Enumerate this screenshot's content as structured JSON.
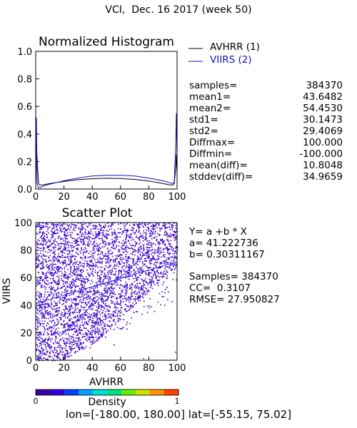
{
  "title": "VCI,  Dec. 16 2017 (week 50)",
  "footer": "lon=[-180.00, 180.00] lat=[-55.15, 75.02]",
  "colors": {
    "avhrr": "#000000",
    "viirs": "#1010c8",
    "scatter": "#3a00c8",
    "fit_line": "#2a2ad8"
  },
  "stats": {
    "rows": [
      {
        "label": "samples=",
        "value": "384370"
      },
      {
        "label": "mean1=",
        "value": "43.6482"
      },
      {
        "label": "mean2=",
        "value": "54.4530"
      },
      {
        "label": "std1=",
        "value": "30.1473"
      },
      {
        "label": "std2=",
        "value": "29.4069"
      },
      {
        "label": "Diffmax=",
        "value": "100.000"
      },
      {
        "label": "Diffmin=",
        "value": "-100.000"
      },
      {
        "label": "mean(diff)=",
        "value": "10.8048"
      },
      {
        "label": "stddev(diff)=",
        "value": "34.9659"
      }
    ]
  },
  "fit": {
    "equation": "Y= a +b * X",
    "a": "a= 41.222736",
    "b": "b= 0.30311167",
    "samples": "Samples= 384370",
    "cc": "CC=  0.3107",
    "rmse": "RMSE= 27.950827"
  },
  "chart_data": [
    {
      "type": "line",
      "title": "Normalized Histogram",
      "xlim": [
        0,
        100
      ],
      "ylim": [
        0.0,
        1.0
      ],
      "x_ticks": [
        "0",
        "20",
        "40",
        "60",
        "80",
        "100"
      ],
      "y_ticks": [
        "0.0",
        "0.2",
        "0.4",
        "0.6",
        "0.8",
        "1.0"
      ],
      "legend_position": "top-right outside",
      "series": [
        {
          "name": "AVHRR (1)",
          "x": [
            0,
            0.5,
            1,
            2,
            3,
            5,
            10,
            20,
            30,
            40,
            50,
            60,
            70,
            80,
            90,
            95,
            97,
            98,
            99,
            99.5,
            100
          ],
          "y": [
            0.03,
            0.3,
            0.22,
            0.04,
            0.03,
            0.03,
            0.04,
            0.055,
            0.068,
            0.075,
            0.078,
            0.076,
            0.07,
            0.058,
            0.04,
            0.03,
            0.03,
            0.04,
            0.15,
            0.25,
            0.1
          ]
        },
        {
          "name": "VIIRS (2)",
          "x": [
            0,
            0.5,
            1,
            2,
            3,
            5,
            10,
            20,
            30,
            40,
            50,
            60,
            70,
            80,
            90,
            95,
            97,
            98,
            99,
            99.5,
            100
          ],
          "y": [
            0.01,
            0.52,
            0.04,
            0.01,
            0.01,
            0.02,
            0.035,
            0.06,
            0.08,
            0.095,
            0.1,
            0.1,
            0.095,
            0.08,
            0.06,
            0.045,
            0.04,
            0.05,
            0.3,
            0.55,
            0.2
          ]
        }
      ]
    },
    {
      "type": "scatter",
      "title": "Scatter Plot",
      "xlabel": "AVHRR",
      "ylabel": "VIIRS",
      "xlim": [
        0,
        100
      ],
      "ylim": [
        0,
        100
      ],
      "x_ticks": [
        "0",
        "20",
        "40",
        "60",
        "80",
        "100"
      ],
      "y_ticks": [
        "0",
        "20",
        "40",
        "60",
        "80",
        "100"
      ],
      "fit_line": {
        "a": 41.222736,
        "b": 0.30311167
      },
      "identity_line": [
        [
          18,
          18
        ],
        [
          80,
          80
        ]
      ],
      "colorbar": {
        "label": "Density",
        "min": "0",
        "max": "1",
        "colors": [
          "#3c00a0",
          "#3000d8",
          "#0040ff",
          "#00a0ff",
          "#00e0d0",
          "#00e080",
          "#60f000",
          "#d0e000",
          "#ff9000",
          "#ff4000"
        ]
      }
    }
  ]
}
